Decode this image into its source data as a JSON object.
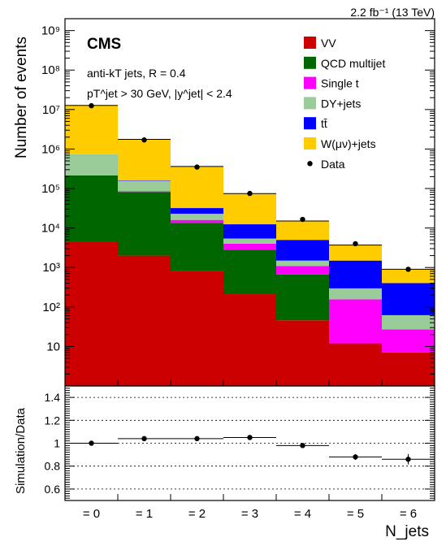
{
  "lumi_label": "2.2 fb⁻¹ (13 TeV)",
  "experiment_label": "CMS",
  "annotation_line1": "anti-kT jets,  R = 0.4",
  "annotation_line2": "pT^jet > 30 GeV,  |y^jet| < 2.4",
  "chart_data": [
    {
      "type": "bar",
      "stacked": true,
      "log_y": true,
      "ylabel": "Number of events",
      "xlabel": "N_jets",
      "ylim": [
        1,
        2000000000
      ],
      "categories": [
        "= 0",
        "= 1",
        "= 2",
        "= 3",
        "= 4",
        "= 5",
        "= 6"
      ],
      "y_tick_labels": [
        "10",
        "10²",
        "10³",
        "10⁴",
        "10⁵",
        "10⁶",
        "10⁷",
        "10⁸",
        "10⁹"
      ],
      "series": [
        {
          "name": "VV",
          "color": "#cc0000",
          "values": [
            4500,
            2000,
            800,
            210,
            45,
            11,
            6
          ]
        },
        {
          "name": "QCD multijet",
          "color": "#006600",
          "values": [
            210000,
            80000,
            12700,
            2600,
            620,
            0,
            0
          ]
        },
        {
          "name": "Single t",
          "color": "#ff00ff",
          "values": [
            2000,
            3000,
            2500,
            1200,
            430,
            144,
            20
          ]
        },
        {
          "name": "DY+jets",
          "color": "#99cc99",
          "values": [
            520000,
            70000,
            7000,
            1400,
            400,
            140,
            35
          ]
        },
        {
          "name": "tt̄",
          "color": "#0000ff",
          "values": [
            100,
            4500,
            9000,
            7000,
            3500,
            1200,
            340
          ]
        },
        {
          "name": "W(μν)+jets",
          "color": "#ffcc00",
          "values": [
            12000000,
            1600000,
            330000,
            62000,
            10000,
            2200,
            500
          ]
        }
      ],
      "data": {
        "name": "Data",
        "values": [
          12500000,
          1700000,
          350000,
          75000,
          16500,
          4000,
          900
        ]
      },
      "legend_position": "top-right"
    },
    {
      "type": "scatter",
      "ylabel": "Simulation/Data",
      "xlabel": "N_jets",
      "ylim": [
        0.5,
        1.5
      ],
      "y_tick_labels": [
        "0.6",
        "0.8",
        "1",
        "1.2",
        "1.4"
      ],
      "grid_y": true,
      "categories": [
        "= 0",
        "= 1",
        "= 2",
        "= 3",
        "= 4",
        "= 5",
        "= 6"
      ],
      "values": [
        1.0,
        1.04,
        1.04,
        1.05,
        0.98,
        0.88,
        0.86
      ],
      "errors": [
        0.005,
        0.005,
        0.007,
        0.01,
        0.015,
        0.025,
        0.045
      ]
    }
  ]
}
